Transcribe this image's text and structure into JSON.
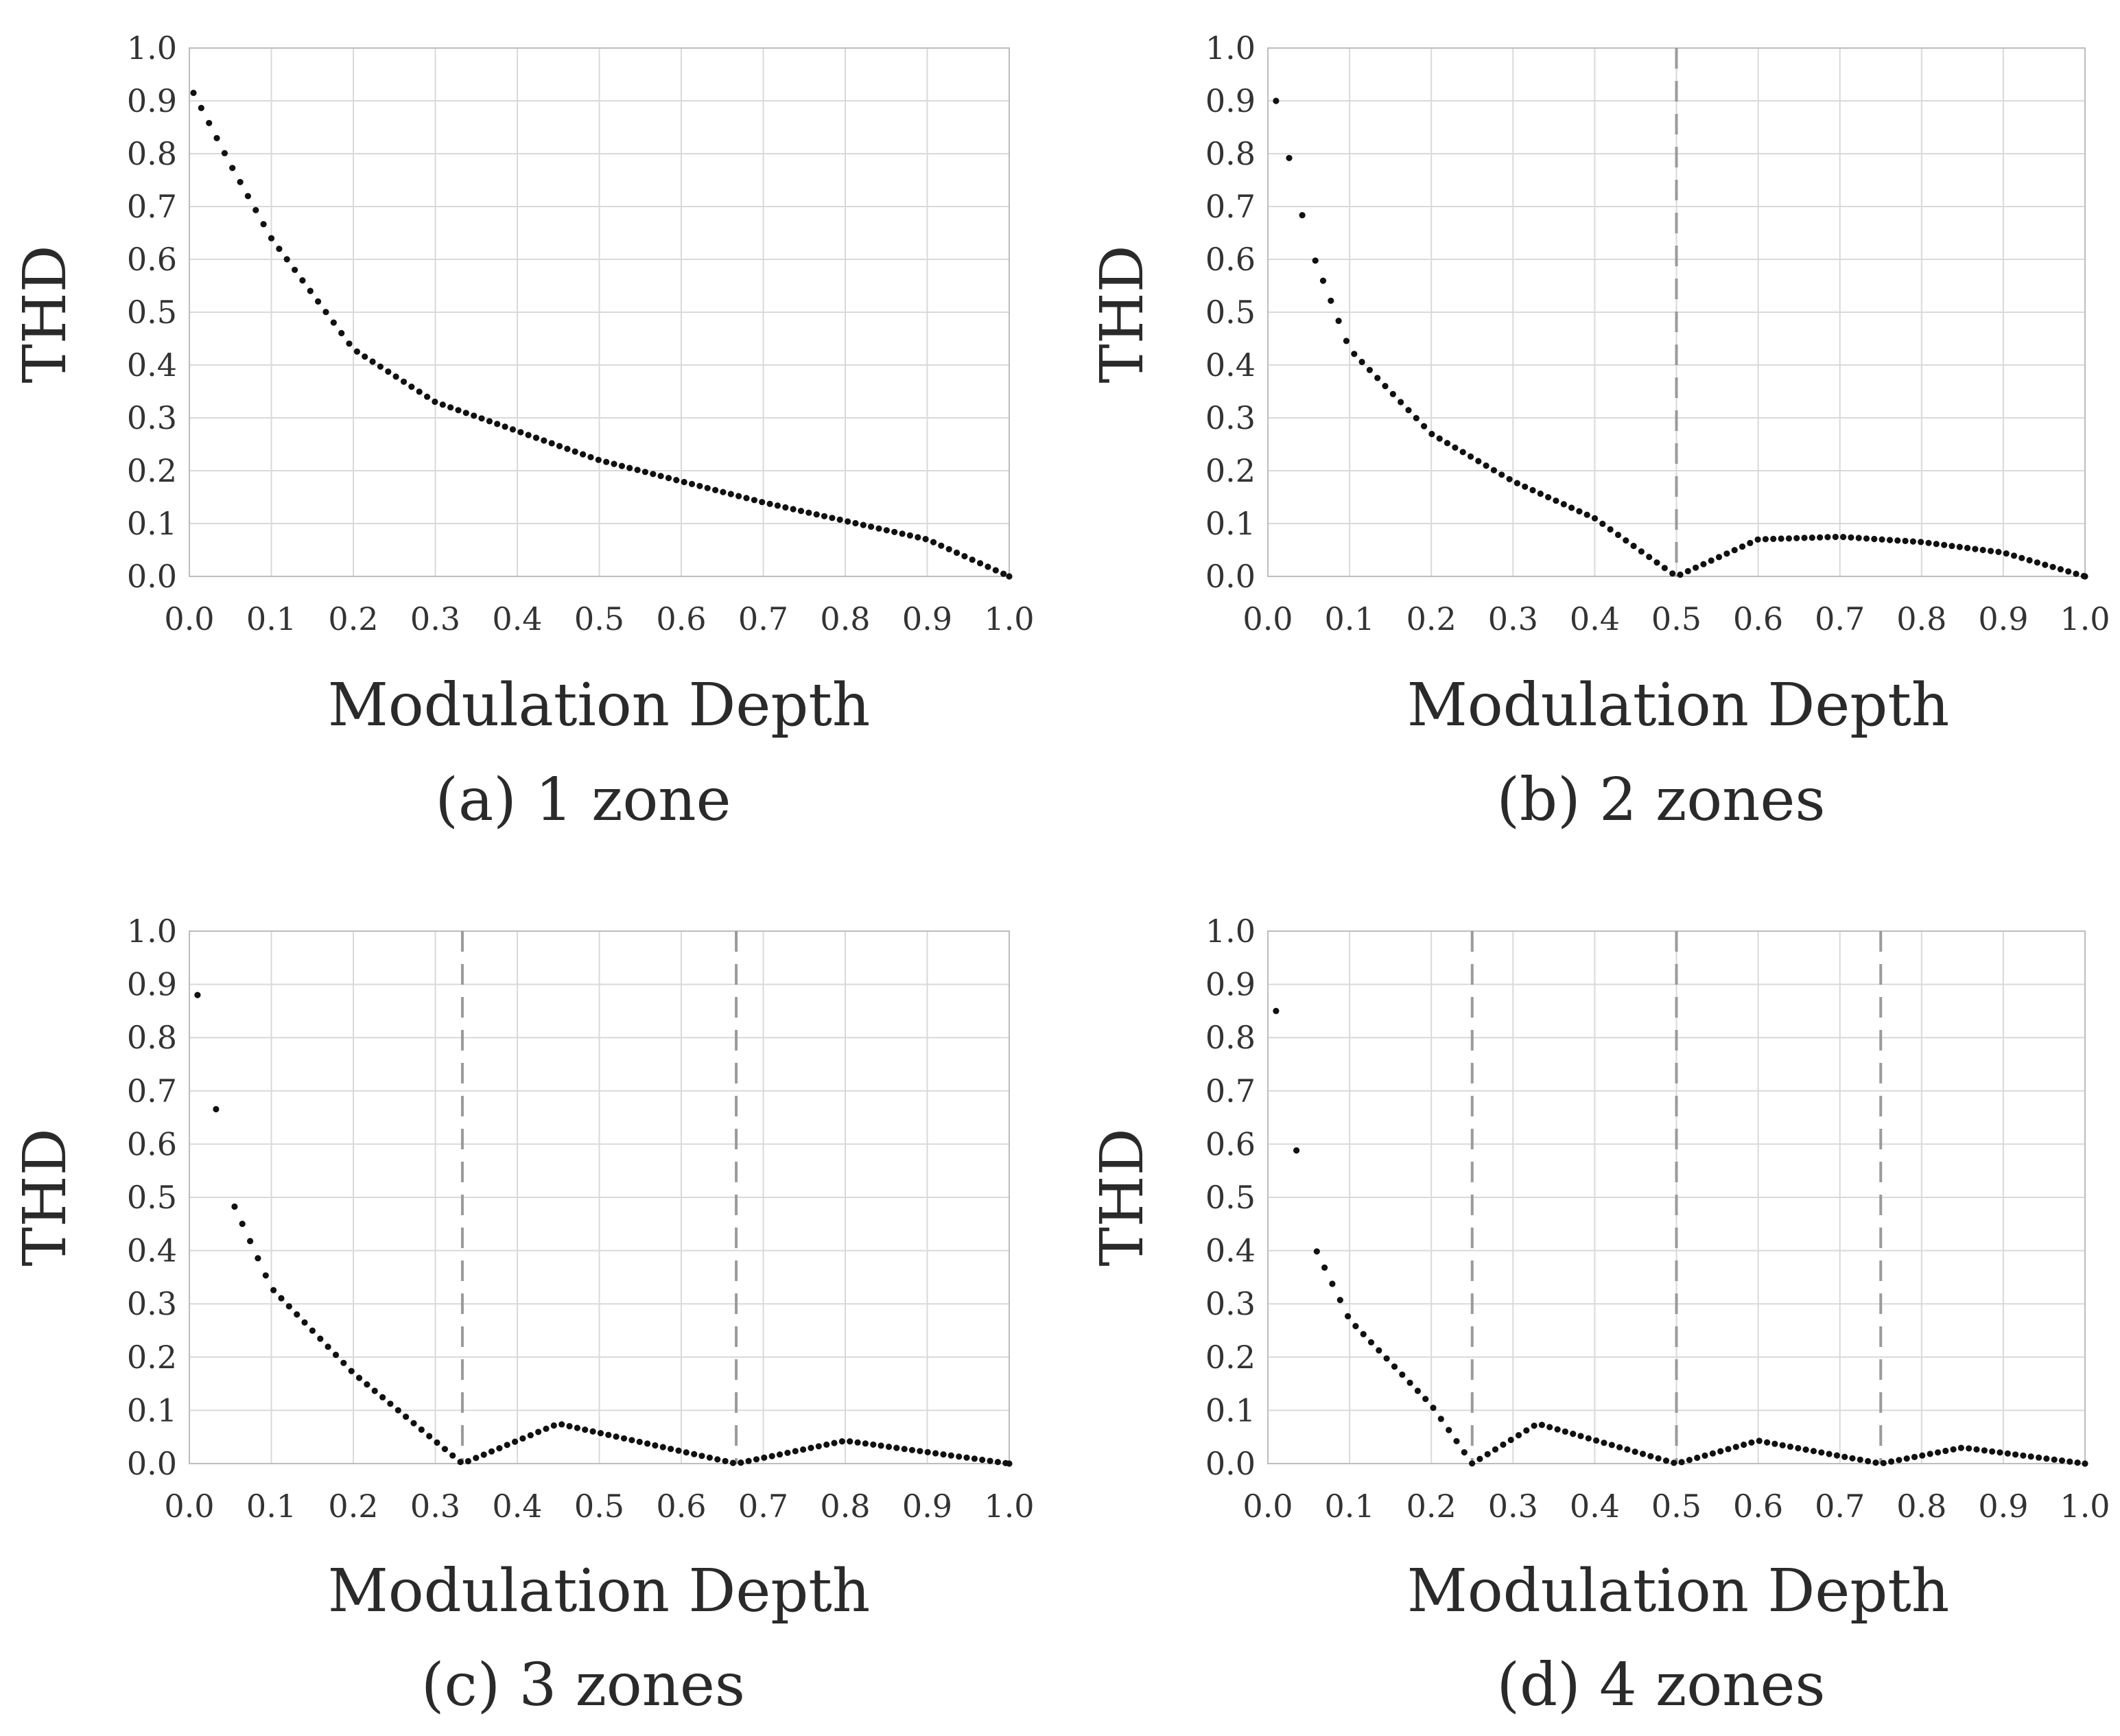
{
  "colors": {
    "points": "#111111",
    "grid": "#d9d9d9",
    "frame": "#bdbdbd",
    "zone_boundary": "#9a9a9a"
  },
  "chart_data": [
    {
      "type": "scatter",
      "caption": "(a) 1 zone",
      "xlabel": "Modulation Depth",
      "ylabel": "THD",
      "xlim": [
        0.0,
        1.0
      ],
      "ylim": [
        0.0,
        1.0
      ],
      "xticks": [
        "0.0",
        "0.1",
        "0.2",
        "0.3",
        "0.4",
        "0.5",
        "0.6",
        "0.7",
        "0.8",
        "0.9",
        "1.0"
      ],
      "yticks": [
        "0.0",
        "0.1",
        "0.2",
        "0.3",
        "0.4",
        "0.5",
        "0.6",
        "0.7",
        "0.8",
        "0.9",
        "1.0"
      ],
      "grid": true,
      "zones": 1,
      "zone_boundaries": [],
      "key_points": [
        [
          0.005,
          0.915
        ],
        [
          0.05,
          0.78
        ],
        [
          0.1,
          0.64
        ],
        [
          0.2,
          0.43
        ],
        [
          0.3,
          0.33
        ],
        [
          0.5,
          0.22
        ],
        [
          0.7,
          0.14
        ],
        [
          0.9,
          0.07
        ],
        [
          1.0,
          0.0
        ]
      ]
    },
    {
      "type": "scatter",
      "caption": "(b) 2 zones",
      "xlabel": "Modulation Depth",
      "ylabel": "THD",
      "xlim": [
        0.0,
        1.0
      ],
      "ylim": [
        0.0,
        1.0
      ],
      "xticks": [
        "0.0",
        "0.1",
        "0.2",
        "0.3",
        "0.4",
        "0.5",
        "0.6",
        "0.7",
        "0.8",
        "0.9",
        "1.0"
      ],
      "yticks": [
        "0.0",
        "0.1",
        "0.2",
        "0.3",
        "0.4",
        "0.5",
        "0.6",
        "0.7",
        "0.8",
        "0.9",
        "1.0"
      ],
      "grid": true,
      "zones": 2,
      "zone_boundaries": [
        0.5
      ],
      "key_points": [
        [
          0.01,
          0.9
        ],
        [
          0.05,
          0.63
        ],
        [
          0.1,
          0.43
        ],
        [
          0.2,
          0.27
        ],
        [
          0.3,
          0.18
        ],
        [
          0.4,
          0.11
        ],
        [
          0.5,
          0.0
        ],
        [
          0.6,
          0.07
        ],
        [
          0.7,
          0.075
        ],
        [
          0.8,
          0.065
        ],
        [
          0.9,
          0.045
        ],
        [
          1.0,
          0.0
        ]
      ]
    },
    {
      "type": "scatter",
      "caption": "(c) 3 zones",
      "xlabel": "Modulation Depth",
      "ylabel": "THD",
      "xlim": [
        0.0,
        1.0
      ],
      "ylim": [
        0.0,
        1.0
      ],
      "xticks": [
        "0.0",
        "0.1",
        "0.2",
        "0.3",
        "0.4",
        "0.5",
        "0.6",
        "0.7",
        "0.8",
        "0.9",
        "1.0"
      ],
      "yticks": [
        "0.0",
        "0.1",
        "0.2",
        "0.3",
        "0.4",
        "0.5",
        "0.6",
        "0.7",
        "0.8",
        "0.9",
        "1.0"
      ],
      "grid": true,
      "zones": 3,
      "zone_boundaries": [
        0.333,
        0.667
      ],
      "key_points": [
        [
          0.01,
          0.88
        ],
        [
          0.05,
          0.5
        ],
        [
          0.1,
          0.33
        ],
        [
          0.2,
          0.17
        ],
        [
          0.333,
          0.0
        ],
        [
          0.45,
          0.075
        ],
        [
          0.667,
          0.0
        ],
        [
          0.8,
          0.043
        ],
        [
          1.0,
          0.0
        ]
      ]
    },
    {
      "type": "scatter",
      "caption": "(d) 4 zones",
      "xlabel": "Modulation Depth",
      "ylabel": "THD",
      "xlim": [
        0.0,
        1.0
      ],
      "ylim": [
        0.0,
        1.0
      ],
      "xticks": [
        "0.0",
        "0.1",
        "0.2",
        "0.3",
        "0.4",
        "0.5",
        "0.6",
        "0.7",
        "0.8",
        "0.9",
        "1.0"
      ],
      "yticks": [
        "0.0",
        "0.1",
        "0.2",
        "0.3",
        "0.4",
        "0.5",
        "0.6",
        "0.7",
        "0.8",
        "0.9",
        "1.0"
      ],
      "grid": true,
      "zones": 4,
      "zone_boundaries": [
        0.25,
        0.5,
        0.75
      ],
      "key_points": [
        [
          0.01,
          0.85
        ],
        [
          0.05,
          0.43
        ],
        [
          0.1,
          0.27
        ],
        [
          0.2,
          0.11
        ],
        [
          0.25,
          0.0
        ],
        [
          0.33,
          0.075
        ],
        [
          0.5,
          0.0
        ],
        [
          0.6,
          0.043
        ],
        [
          0.75,
          0.0
        ],
        [
          0.85,
          0.03
        ],
        [
          1.0,
          0.0
        ]
      ]
    }
  ]
}
